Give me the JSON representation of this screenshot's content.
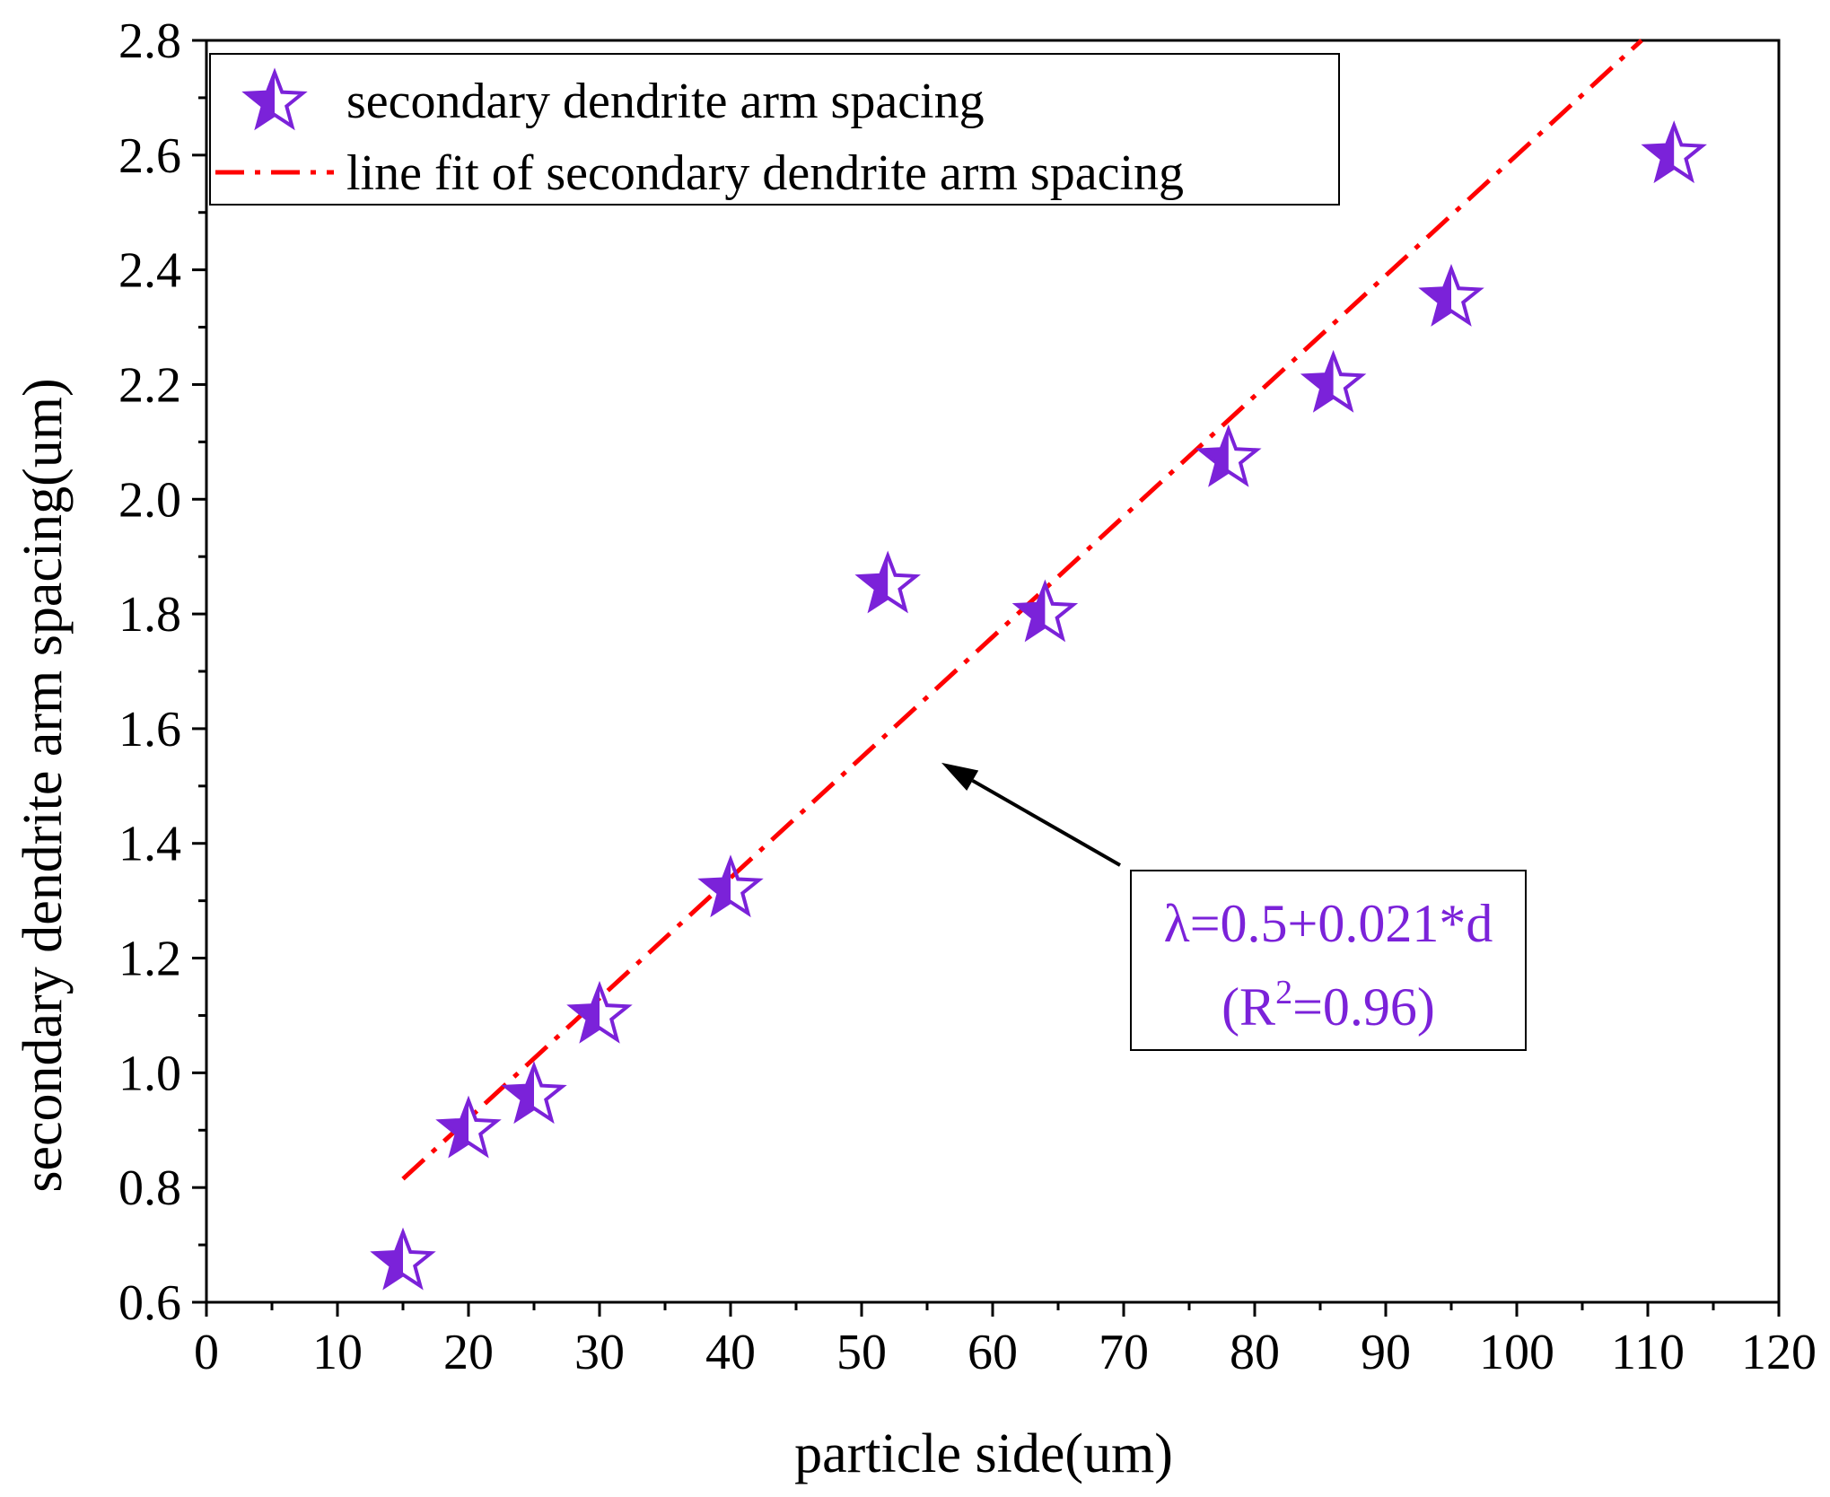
{
  "chart_data": {
    "type": "scatter",
    "title": "",
    "xlabel": "particle side(um)",
    "ylabel": "secondary dendrite arm spacing(um)",
    "xlim": [
      0,
      120
    ],
    "ylim": [
      0.6,
      2.8
    ],
    "x_ticks": [
      0,
      10,
      20,
      30,
      40,
      50,
      60,
      70,
      80,
      90,
      100,
      110,
      120
    ],
    "y_ticks": [
      0.6,
      0.8,
      1.0,
      1.2,
      1.4,
      1.6,
      1.8,
      2.0,
      2.2,
      2.4,
      2.6,
      2.8
    ],
    "x_tick_labels": [
      "0",
      "10",
      "20",
      "30",
      "40",
      "50",
      "60",
      "70",
      "80",
      "90",
      "100",
      "110",
      "120"
    ],
    "y_tick_labels": [
      "0.6",
      "0.8",
      "1.0",
      "1.2",
      "1.4",
      "1.6",
      "1.8",
      "2.0",
      "2.2",
      "2.4",
      "2.6",
      "2.8"
    ],
    "grid": false,
    "legend_position": "top-left",
    "series": [
      {
        "name": "secondary dendrite arm spacing",
        "kind": "scatter",
        "marker": "star-half-filled",
        "color": "#7B22D9",
        "x": [
          15,
          20,
          25,
          30,
          40,
          52,
          64,
          78,
          86,
          95,
          112
        ],
        "y": [
          0.67,
          0.9,
          0.96,
          1.1,
          1.32,
          1.85,
          1.8,
          2.07,
          2.2,
          2.35,
          2.6
        ]
      },
      {
        "name": "line fit of secondary dendrite arm spacing",
        "kind": "line",
        "style": "dash-dot",
        "color": "#FF0000",
        "x": [
          15,
          112
        ],
        "y": [
          0.815,
          2.852
        ]
      }
    ],
    "annotation": {
      "equation": "λ=0.5+0.021*d",
      "r2_prefix": "(R",
      "r2_sup": "2",
      "r2_suffix": "=0.96)",
      "text_color": "#7B22D9",
      "arrow_target": [
        55,
        1.55
      ]
    }
  }
}
